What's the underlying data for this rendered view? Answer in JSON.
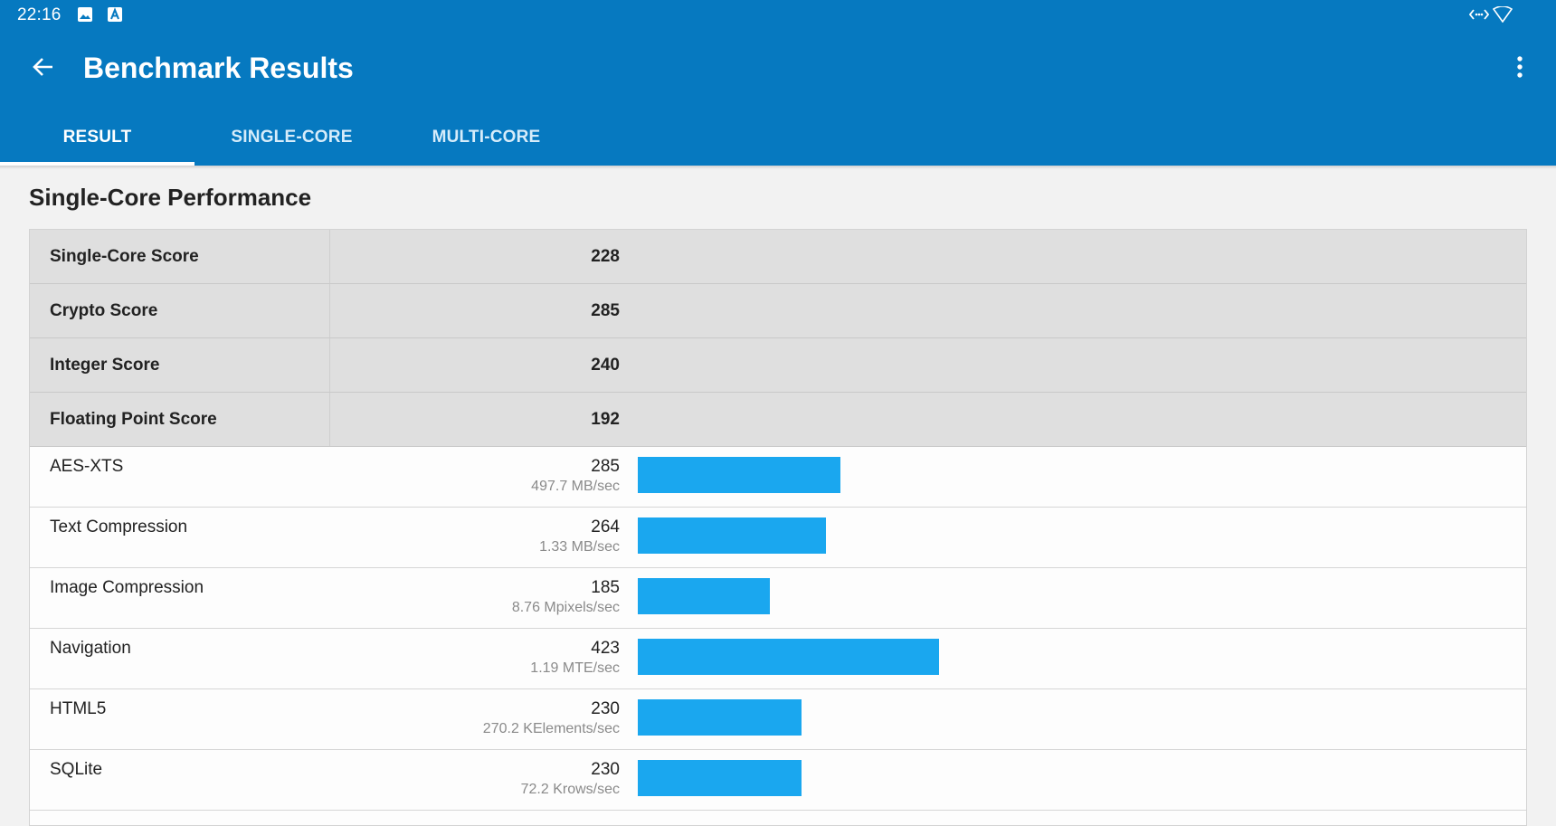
{
  "status_bar": {
    "time": "22:16",
    "left_icons": [
      "image-icon",
      "font-a-icon"
    ],
    "right_icons": [
      "data-transfer-icon",
      "wifi-icon"
    ]
  },
  "app_bar": {
    "title": "Benchmark Results",
    "back_icon": "back-arrow-icon",
    "menu_icon": "more-vert-icon",
    "color": "#0679c0"
  },
  "tabs": [
    {
      "label": "RESULT",
      "active": true
    },
    {
      "label": "SINGLE-CORE",
      "active": false
    },
    {
      "label": "MULTI-CORE",
      "active": false
    }
  ],
  "section": {
    "title": "Single-Core Performance"
  },
  "scores": [
    {
      "label": "Single-Core Score",
      "value": "228"
    },
    {
      "label": "Crypto Score",
      "value": "285"
    },
    {
      "label": "Integer Score",
      "value": "240"
    },
    {
      "label": "Floating Point Score",
      "value": "192"
    }
  ],
  "benchmarks": [
    {
      "label": "AES-XTS",
      "score": "285",
      "rate": "497.7 MB/sec"
    },
    {
      "label": "Text Compression",
      "score": "264",
      "rate": "1.33 MB/sec"
    },
    {
      "label": "Image Compression",
      "score": "185",
      "rate": "8.76 Mpixels/sec"
    },
    {
      "label": "Navigation",
      "score": "423",
      "rate": "1.19 MTE/sec"
    },
    {
      "label": "HTML5",
      "score": "230",
      "rate": "270.2 KElements/sec"
    },
    {
      "label": "SQLite",
      "score": "230",
      "rate": "72.2 Krows/sec"
    }
  ],
  "bar_color": "#1aa7ef"
}
